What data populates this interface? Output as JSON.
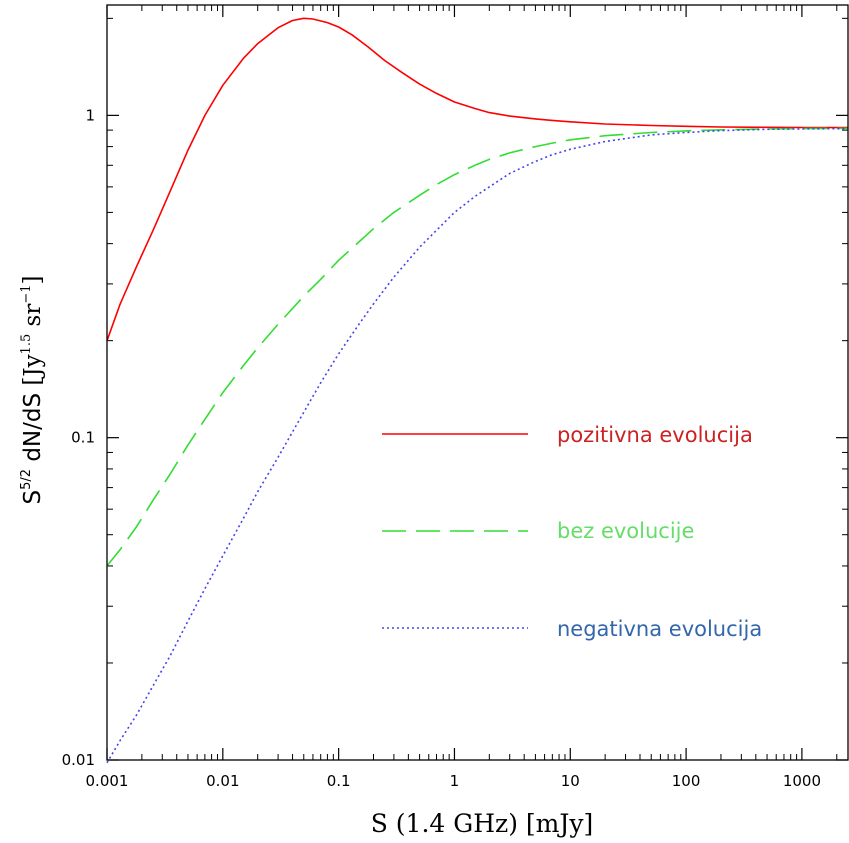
{
  "chart_data": {
    "type": "line",
    "xlabel": "S (1.4 GHz) [mJy]",
    "ylabel": {
      "main": "S",
      "main_sup": "5/2",
      "quantity": " dN/dS ",
      "unit_open": "[Jy",
      "unit_sup1": "1.5",
      "unit_mid": " sr",
      "unit_sup2": "−1",
      "unit_close": "]"
    },
    "xscale": "log",
    "yscale": "log",
    "xlim": [
      0.001,
      2500
    ],
    "ylim": [
      0.01,
      2.2
    ],
    "x_ticks": [
      {
        "value": 0.001,
        "label": "0.001"
      },
      {
        "value": 0.01,
        "label": "0.01"
      },
      {
        "value": 0.1,
        "label": "0.1"
      },
      {
        "value": 1,
        "label": "1"
      },
      {
        "value": 10,
        "label": "10"
      },
      {
        "value": 100,
        "label": "100"
      },
      {
        "value": 1000,
        "label": "1000"
      }
    ],
    "y_ticks": [
      {
        "value": 0.01,
        "label": "0.01"
      },
      {
        "value": 0.1,
        "label": "0.1"
      },
      {
        "value": 1,
        "label": "1"
      }
    ],
    "grid": false,
    "legend_position": "right-center",
    "series": [
      {
        "name": "pozitivna evolucija",
        "color": "#ff0000",
        "style": "solid",
        "x": [
          0.001,
          0.0013,
          0.0018,
          0.0025,
          0.0035,
          0.005,
          0.007,
          0.01,
          0.015,
          0.02,
          0.03,
          0.04,
          0.05,
          0.06,
          0.08,
          0.1,
          0.13,
          0.18,
          0.25,
          0.35,
          0.5,
          0.7,
          1,
          1.5,
          2,
          3,
          5,
          7,
          10,
          20,
          50,
          100,
          200,
          500,
          1000,
          2500
        ],
        "y": [
          0.2,
          0.26,
          0.34,
          0.44,
          0.58,
          0.78,
          1.0,
          1.24,
          1.5,
          1.67,
          1.87,
          1.97,
          2.0,
          1.99,
          1.94,
          1.88,
          1.78,
          1.63,
          1.48,
          1.36,
          1.25,
          1.17,
          1.1,
          1.05,
          1.02,
          0.995,
          0.975,
          0.965,
          0.955,
          0.94,
          0.93,
          0.925,
          0.92,
          0.918,
          0.917,
          0.916
        ]
      },
      {
        "name": "bez evolucije",
        "color": "#33dd33",
        "style": "dashed",
        "x": [
          0.001,
          0.0013,
          0.0018,
          0.0025,
          0.0035,
          0.005,
          0.007,
          0.01,
          0.015,
          0.02,
          0.03,
          0.05,
          0.07,
          0.1,
          0.15,
          0.2,
          0.3,
          0.5,
          0.7,
          1,
          1.5,
          2,
          3,
          5,
          7,
          10,
          20,
          50,
          100,
          200,
          500,
          1000,
          2500
        ],
        "y": [
          0.04,
          0.045,
          0.053,
          0.064,
          0.077,
          0.095,
          0.114,
          0.138,
          0.167,
          0.19,
          0.225,
          0.275,
          0.31,
          0.355,
          0.405,
          0.445,
          0.5,
          0.565,
          0.61,
          0.655,
          0.7,
          0.73,
          0.765,
          0.8,
          0.82,
          0.84,
          0.865,
          0.885,
          0.895,
          0.902,
          0.908,
          0.91,
          0.912
        ]
      },
      {
        "name": "negativna evolucija",
        "color": "#4444ee",
        "style": "dotted",
        "x": [
          0.001,
          0.0013,
          0.0018,
          0.0025,
          0.0035,
          0.005,
          0.007,
          0.01,
          0.015,
          0.02,
          0.03,
          0.05,
          0.07,
          0.1,
          0.15,
          0.2,
          0.3,
          0.5,
          0.7,
          1,
          1.5,
          2,
          3,
          5,
          7,
          10,
          20,
          50,
          100,
          200,
          500,
          1000,
          2500
        ],
        "y": [
          0.0098,
          0.0115,
          0.0138,
          0.017,
          0.021,
          0.027,
          0.034,
          0.043,
          0.056,
          0.068,
          0.087,
          0.12,
          0.148,
          0.182,
          0.225,
          0.26,
          0.315,
          0.39,
          0.44,
          0.5,
          0.56,
          0.6,
          0.66,
          0.72,
          0.755,
          0.785,
          0.83,
          0.87,
          0.885,
          0.897,
          0.905,
          0.908,
          0.91
        ]
      }
    ]
  }
}
